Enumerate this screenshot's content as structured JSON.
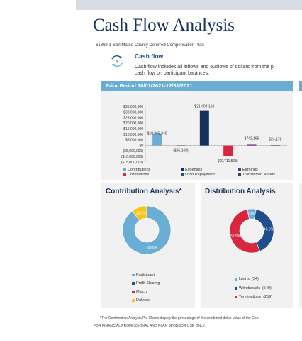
{
  "document": {
    "title": "Cash Flow Analysis",
    "plan": "61869-1-San Mateo County Deferred Compensation Plan"
  },
  "cash_flow": {
    "icon": "cash-flow-cycle-icon",
    "heading": "Cash flow",
    "description_line1": "Cash flow includes all inflows and outflows of dollars from the p",
    "description_line2": "cash flow on participant balances."
  },
  "period": {
    "label": "Prior Period 10/01/2021-12/31/2021"
  },
  "chart_data": [
    {
      "type": "bar",
      "title": "",
      "categories": [
        "Contributions",
        "Distributions",
        "Expenses",
        "Loan Repayment",
        "Earnings",
        "Transferred Assets"
      ],
      "values": [
        10865340,
        -95168,
        31404160,
        -9711568,
        742166,
        24178
      ],
      "data_labels": [
        "$10,865,340",
        "($95,168)",
        "$31,404,160",
        "($9,711,568)",
        "$742,166",
        "$24,178"
      ],
      "colors": [
        "#6aaed6",
        "#1f4e8c",
        "#16305c",
        "#d7263d",
        "#6a2c91",
        "#222222"
      ],
      "ylim": [
        -15000000,
        35000000
      ],
      "yticks": [
        35000000,
        30000000,
        25000000,
        20000000,
        15000000,
        10000000,
        5000000,
        0,
        -5000000,
        -10000000,
        -15000000
      ],
      "ytick_labels": [
        "$35,000,000",
        "$30,000,000",
        "$25,000,000",
        "$20,000,000",
        "$15,000,000",
        "$10,000,000",
        "$5,000,000",
        "$0",
        "($5,000,000)",
        "($10,000,000)",
        "($15,000,000)"
      ],
      "legend": [
        {
          "label": "Contributions",
          "color": "#6aaed6"
        },
        {
          "label": "Expenses",
          "color": "#16305c"
        },
        {
          "label": "Earnings",
          "color": "#6a2c91"
        },
        {
          "label": "Distributions",
          "color": "#d7263d"
        },
        {
          "label": "Loan Repayment",
          "color": "#1f4e8c"
        },
        {
          "label": "Transferred Assets",
          "color": "#444444"
        }
      ],
      "legend_position": "bottom"
    },
    {
      "type": "pie",
      "title": "Contribution Analysis*",
      "slices": [
        {
          "label": "Participant",
          "value": 89.6,
          "pct_label": "89.6%",
          "color": "#6aaed6"
        },
        {
          "label": "Profit Sharing",
          "value": 0,
          "pct_label": "",
          "color": "#1f4e8c"
        },
        {
          "label": "Match",
          "value": 0,
          "pct_label": "",
          "color": "#d7263d"
        },
        {
          "label": "Rollover",
          "value": 10.4,
          "pct_label": "10.4%",
          "color": "#f5c518"
        }
      ],
      "legend_position": "bottom-left"
    },
    {
      "type": "pie",
      "title": "Distribution Analysis",
      "slices": [
        {
          "label": "Loans",
          "value": 6.6,
          "count": "(34)",
          "pct_label": "6.6%",
          "color": "#6aaed6"
        },
        {
          "label": "Withdrawals",
          "value": 40.5,
          "count": "(549)",
          "pct_label": "40.5%",
          "color": "#1f4e8c"
        },
        {
          "label": "Terminations",
          "value": 52.9,
          "count": "(259)",
          "pct_label": "52.9%",
          "color": "#d7263d"
        }
      ],
      "legend_position": "bottom-left"
    }
  ],
  "footnote": "*The Contribution Analysis Pie Charts display the percentage of the combined dollar value of the Cont",
  "footer": "FOR FINANCIAL PROFESSIONAL AND PLAN SPONSOR USE ONLY."
}
